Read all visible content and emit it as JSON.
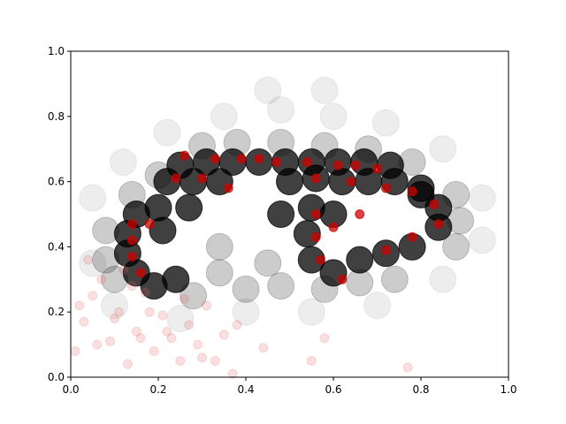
{
  "chart_data": {
    "type": "scatter",
    "series": [
      {
        "color": "#000000",
        "alpha": 0.07,
        "x": [
          0.05,
          0.05,
          0.12,
          0.22,
          0.35,
          0.48,
          0.6,
          0.72,
          0.85,
          0.94,
          0.94,
          0.85,
          0.7,
          0.55,
          0.4,
          0.25,
          0.1,
          0.45,
          0.58
        ],
        "y": [
          0.55,
          0.35,
          0.66,
          0.75,
          0.8,
          0.82,
          0.8,
          0.78,
          0.7,
          0.55,
          0.42,
          0.3,
          0.22,
          0.2,
          0.2,
          0.18,
          0.22,
          0.88,
          0.88
        ]
      },
      {
        "color": "#000000",
        "alpha": 0.2,
        "x": [
          0.34,
          0.34,
          0.4,
          0.45,
          0.28,
          0.48,
          0.58,
          0.66,
          0.74,
          0.88,
          0.89,
          0.88,
          0.2,
          0.14,
          0.08,
          0.08,
          0.1,
          0.38,
          0.48,
          0.58,
          0.68,
          0.78,
          0.3
        ],
        "y": [
          0.4,
          0.32,
          0.27,
          0.35,
          0.25,
          0.28,
          0.27,
          0.29,
          0.3,
          0.4,
          0.48,
          0.56,
          0.62,
          0.56,
          0.45,
          0.36,
          0.3,
          0.72,
          0.72,
          0.71,
          0.7,
          0.66,
          0.71
        ]
      },
      {
        "color": "#000000",
        "alpha": 0.75,
        "x": [
          0.25,
          0.31,
          0.37,
          0.43,
          0.49,
          0.55,
          0.61,
          0.67,
          0.73,
          0.22,
          0.28,
          0.34,
          0.5,
          0.56,
          0.62,
          0.68,
          0.74,
          0.8,
          0.15,
          0.2,
          0.13,
          0.13,
          0.15,
          0.19,
          0.24,
          0.21,
          0.27,
          0.55,
          0.54,
          0.55,
          0.6,
          0.66,
          0.72,
          0.78,
          0.84,
          0.84,
          0.8,
          0.6,
          0.48
        ],
        "y": [
          0.65,
          0.66,
          0.66,
          0.66,
          0.66,
          0.66,
          0.66,
          0.66,
          0.65,
          0.6,
          0.6,
          0.6,
          0.6,
          0.61,
          0.6,
          0.6,
          0.6,
          0.58,
          0.5,
          0.52,
          0.44,
          0.38,
          0.32,
          0.28,
          0.3,
          0.45,
          0.52,
          0.52,
          0.44,
          0.36,
          0.32,
          0.36,
          0.38,
          0.4,
          0.46,
          0.52,
          0.56,
          0.5,
          0.5
        ]
      },
      {
        "color": "#cc0000",
        "alpha": 0.75,
        "x": [
          0.26,
          0.33,
          0.39,
          0.43,
          0.47,
          0.54,
          0.61,
          0.65,
          0.7,
          0.24,
          0.3,
          0.36,
          0.56,
          0.64,
          0.72,
          0.78,
          0.83,
          0.14,
          0.18,
          0.14,
          0.14,
          0.16,
          0.56,
          0.56,
          0.57,
          0.62,
          0.72,
          0.78,
          0.84,
          0.6,
          0.66
        ],
        "y": [
          0.68,
          0.67,
          0.67,
          0.67,
          0.66,
          0.66,
          0.65,
          0.65,
          0.64,
          0.61,
          0.61,
          0.58,
          0.61,
          0.6,
          0.58,
          0.57,
          0.53,
          0.47,
          0.47,
          0.42,
          0.37,
          0.32,
          0.5,
          0.43,
          0.36,
          0.3,
          0.39,
          0.43,
          0.47,
          0.46,
          0.5
        ]
      },
      {
        "color": "#e06060",
        "alpha": 0.2,
        "x": [
          0.01,
          0.03,
          0.05,
          0.07,
          0.09,
          0.11,
          0.13,
          0.15,
          0.17,
          0.19,
          0.21,
          0.23,
          0.25,
          0.27,
          0.29,
          0.31,
          0.33,
          0.35,
          0.37,
          0.02,
          0.06,
          0.1,
          0.14,
          0.18,
          0.22,
          0.26,
          0.3,
          0.38,
          0.44,
          0.55,
          0.58,
          0.77,
          0.04,
          0.12,
          0.16
        ],
        "y": [
          0.08,
          0.17,
          0.25,
          0.3,
          0.11,
          0.2,
          0.04,
          0.14,
          0.26,
          0.08,
          0.19,
          0.12,
          0.05,
          0.16,
          0.1,
          0.22,
          0.05,
          0.13,
          0.01,
          0.22,
          0.1,
          0.18,
          0.28,
          0.2,
          0.14,
          0.24,
          0.06,
          0.16,
          0.09,
          0.05,
          0.12,
          0.03,
          0.36,
          0.33,
          0.12
        ]
      }
    ],
    "xlim": [
      0,
      1
    ],
    "ylim": [
      0,
      1
    ],
    "xticks": [
      {
        "value": 0,
        "label": "0.0"
      },
      {
        "value": 0.2,
        "label": "0.2"
      },
      {
        "value": 0.4,
        "label": "0.4"
      },
      {
        "value": 0.6,
        "label": "0.6"
      },
      {
        "value": 0.8,
        "label": "0.8"
      },
      {
        "value": 1,
        "label": "1.0"
      }
    ],
    "yticks": [
      {
        "value": 0,
        "label": "0.0"
      },
      {
        "value": 0.2,
        "label": "0.2"
      },
      {
        "value": 0.4,
        "label": "0.4"
      },
      {
        "value": 0.6,
        "label": "0.6"
      },
      {
        "value": 0.8,
        "label": "0.8"
      },
      {
        "value": 1,
        "label": "1.0"
      }
    ]
  }
}
